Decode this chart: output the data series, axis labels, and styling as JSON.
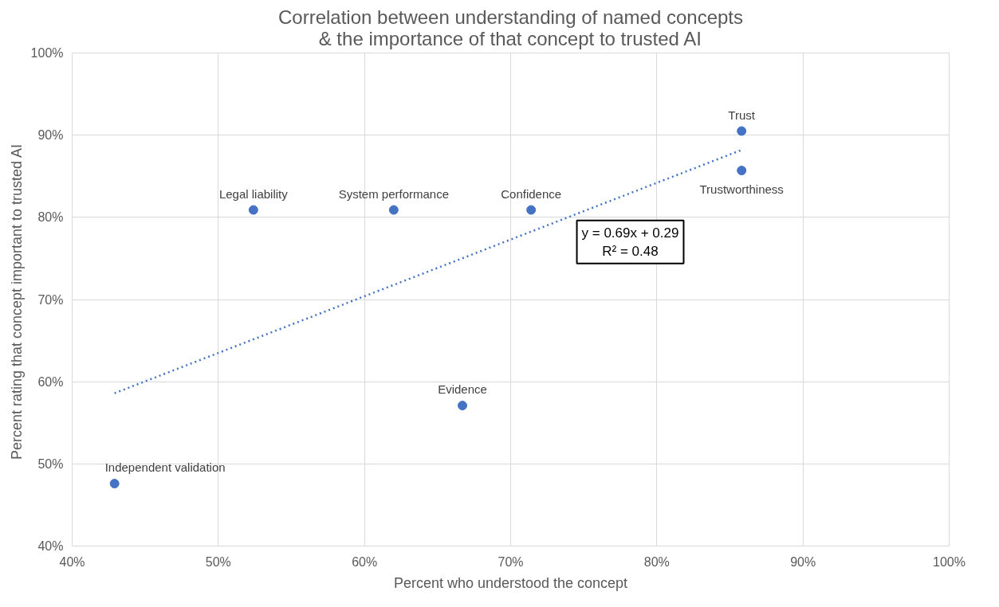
{
  "chart_data": {
    "type": "scatter",
    "title": "Correlation between understanding of named concepts\n& the importance of that concept to trusted AI",
    "xlabel": "Percent who understood the concept",
    "ylabel": "Percent  rating that concept important to trusted AI",
    "series": [
      {
        "color": "#4472c4",
        "marker": "circle",
        "x": [
          42.9,
          52.4,
          62.0,
          71.4,
          66.7,
          85.8,
          85.8
        ],
        "values": [
          47.6,
          80.9,
          80.9,
          80.9,
          57.1,
          90.5,
          85.7
        ]
      },
      {
        "type": "line",
        "color": "#4472c4",
        "line_style": "dotted",
        "x": [
          42.9,
          85.8
        ],
        "values": [
          58.6,
          88.2
        ]
      }
    ],
    "annotations": [
      {
        "text": "Independent  validation",
        "x": 42.9,
        "y": 47.6
      },
      {
        "text": "Legal liability",
        "x": 52.4,
        "y": 80.9
      },
      {
        "text": "System performance",
        "x": 62.0,
        "y": 80.9
      },
      {
        "text": "Confidence",
        "x": 71.4,
        "y": 80.9
      },
      {
        "text": "Evidence",
        "x": 66.7,
        "y": 57.1
      },
      {
        "text": "Trust",
        "x": 85.8,
        "y": 90.5
      },
      {
        "text": "Trustworthiness",
        "x": 85.8,
        "y": 85.7
      },
      "y = 0.69x + 0.29\nR² = 0.48"
    ],
    "xlim": [
      40,
      100
    ],
    "ylim": [
      40,
      100
    ],
    "xticks": [
      {
        "value": 40,
        "label": "40%"
      },
      {
        "value": 50,
        "label": "50%"
      },
      {
        "value": 60,
        "label": "60%"
      },
      {
        "value": 70,
        "label": "70%"
      },
      {
        "value": 80,
        "label": "80%"
      },
      {
        "value": 90,
        "label": "90%"
      },
      {
        "value": 100,
        "label": "100%"
      }
    ],
    "yticks": [
      {
        "value": 40,
        "label": "40%"
      },
      {
        "value": 50,
        "label": "50%"
      },
      {
        "value": 60,
        "label": "60%"
      },
      {
        "value": 70,
        "label": "70%"
      },
      {
        "value": 80,
        "label": "80%"
      },
      {
        "value": 90,
        "label": "90%"
      },
      {
        "value": 100,
        "label": "100%"
      }
    ],
    "grid": true
  }
}
